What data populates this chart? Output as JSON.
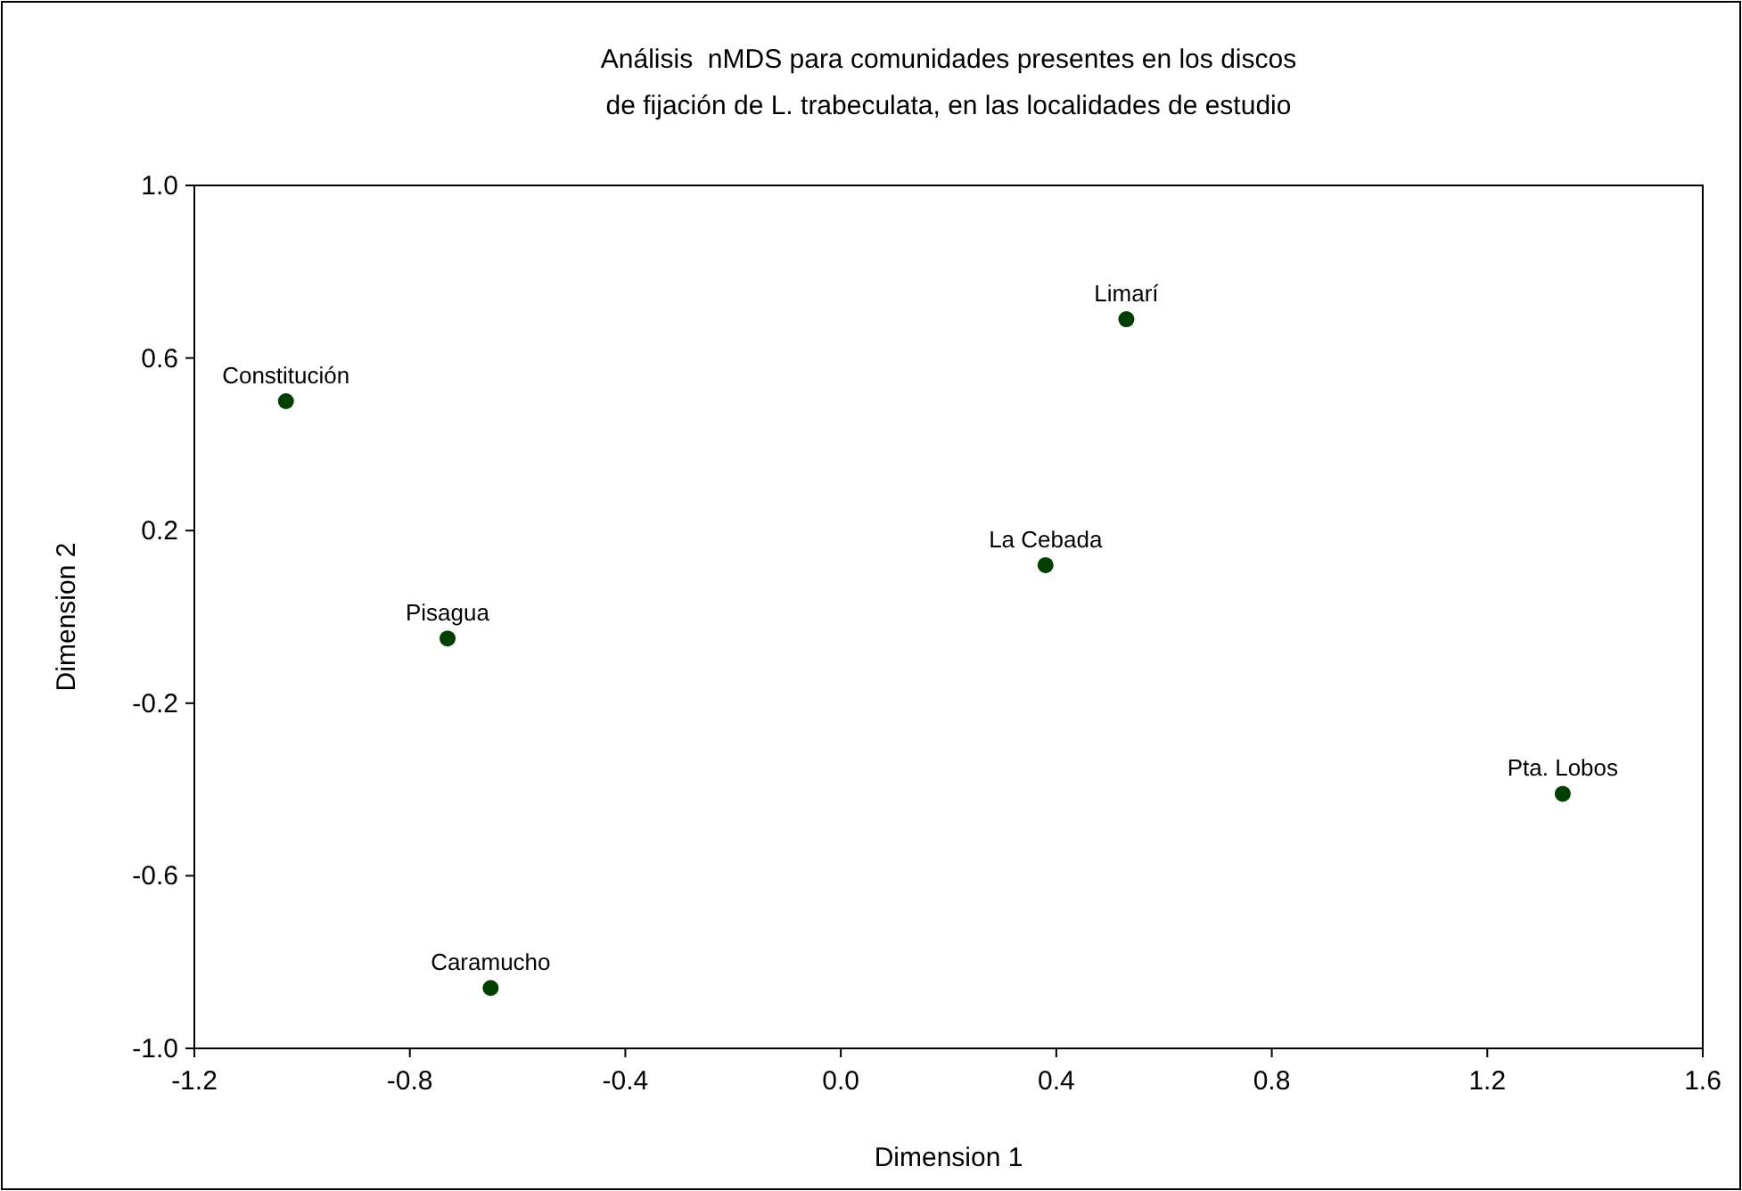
{
  "chart_data": {
    "type": "scatter",
    "title": "Análisis  nMDS para comunidades presentes en los discos\nde fijación de L. trabeculata, en las localidades de estudio",
    "xlabel": "Dimension 1",
    "ylabel": "Dimension 2",
    "x": [
      -1.03,
      -0.73,
      -0.65,
      0.38,
      0.53,
      1.34
    ],
    "values": [
      0.5,
      -0.05,
      -0.86,
      0.12,
      0.69,
      -0.41
    ],
    "color": "#004000",
    "marker": "circle",
    "grid": false,
    "xlim": [
      -1.2,
      1.6
    ],
    "xticks": [
      -1.2,
      -0.8,
      -0.4,
      {
        "value": 0,
        "label": "0.0"
      },
      0.4,
      0.8,
      1.2,
      1.6
    ],
    "ylim": [
      -1.0,
      1.0
    ],
    "yticks": [
      {
        "value": -1,
        "label": "-1.0"
      },
      -0.6,
      -0.2,
      0.2,
      0.6,
      {
        "value": 1,
        "label": "1.0"
      }
    ],
    "annotations": [
      {
        "text": "Constitución",
        "x": -1.03,
        "y": 0.5
      },
      {
        "text": "Pisagua",
        "x": -0.73,
        "y": -0.05
      },
      {
        "text": "Caramucho",
        "x": -0.65,
        "y": -0.86
      },
      {
        "text": "La Cebada",
        "x": 0.38,
        "y": 0.12
      },
      {
        "text": "Limarí",
        "x": 0.53,
        "y": 0.69
      },
      {
        "text": "Pta. Lobos",
        "x": 1.34,
        "y": -0.41
      }
    ]
  }
}
